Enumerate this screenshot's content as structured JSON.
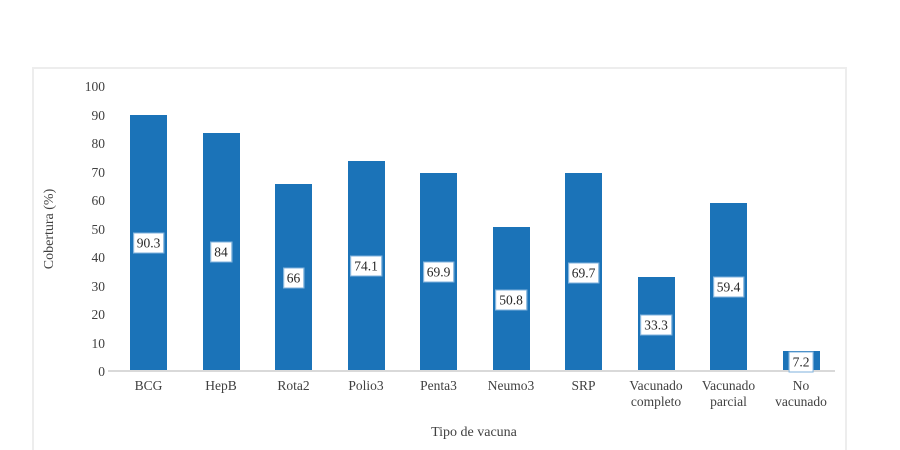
{
  "chart_data": {
    "type": "bar",
    "title": "",
    "categories": [
      "BCG",
      "HepB",
      "Rota2",
      "Polio3",
      "Penta3",
      "Neumo3",
      "SRP",
      "Vacunado completo",
      "Vacunado parcial",
      "No vacunado"
    ],
    "category_lines": [
      [
        "BCG"
      ],
      [
        "HepB"
      ],
      [
        "Rota2"
      ],
      [
        "Polio3"
      ],
      [
        "Penta3"
      ],
      [
        "Neumo3"
      ],
      [
        "SRP"
      ],
      [
        "Vacunado",
        "completo"
      ],
      [
        "Vacunado",
        "parcial"
      ],
      [
        "No",
        "vacunado"
      ]
    ],
    "values": [
      90.3,
      84,
      66,
      74.1,
      69.9,
      50.8,
      69.7,
      33.3,
      59.4,
      7.2
    ],
    "data_labels": [
      "90.3",
      "84",
      "66",
      "74.1",
      "69.9",
      "50.8",
      "69.7",
      "33.3",
      "59.4",
      "7.2"
    ],
    "xlabel": "Tipo de vacuna",
    "ylabel": "Cobertura (%)",
    "ylim": [
      0,
      100
    ],
    "yticks": [
      0,
      10,
      20,
      30,
      40,
      50,
      60,
      70,
      80,
      90,
      100
    ],
    "grid": false,
    "legend": false,
    "data_label_position": "center-of-bar",
    "colors": {
      "bar": "#1B73B8",
      "label_box_border": "#7FB2DC",
      "label_box_background": "#FFFFFF",
      "axis_line": "#D9D9D9",
      "frame_border": "#EDEDED",
      "text": "#404040"
    }
  }
}
